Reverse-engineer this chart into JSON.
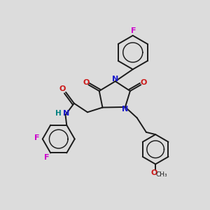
{
  "bg_color": "#dcdcdc",
  "bond_color": "#1a1a1a",
  "nitrogen_color": "#1a1acc",
  "oxygen_color": "#cc1a1a",
  "fluorine_color": "#cc00cc",
  "hydrogen_color": "#008080",
  "figsize": [
    3.0,
    3.0
  ],
  "dpi": 100,
  "xlim": [
    0,
    10
  ],
  "ylim": [
    0,
    10
  ]
}
